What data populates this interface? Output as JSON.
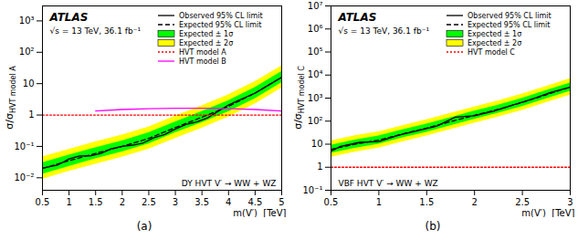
{
  "chart_data": [
    {
      "type": "line",
      "log": "y",
      "panel_label": "(a)",
      "xlabel": "m(V′)  [TeV]",
      "ylabel": "σ/σ",
      "ylabel_subscript": "HVT model A",
      "annotations": [
        "ATLAS",
        "√s = 13 TeV, 36.1 fb⁻¹",
        "DY HVT V′ → WW + WZ"
      ],
      "legend": "top-right",
      "xlim": [
        0.5,
        5
      ],
      "xticks": [
        0.5,
        1,
        1.5,
        2,
        2.5,
        3,
        3.5,
        4,
        4.5,
        5
      ],
      "ylim": [
        0.004,
        3000
      ],
      "yticks": [
        {
          "value": 0.01,
          "label": "10⁻²"
        },
        {
          "value": 0.1,
          "label": "10⁻¹"
        },
        1,
        10,
        {
          "value": 100,
          "label": "10²"
        },
        {
          "value": 1000,
          "label": "10³"
        }
      ],
      "series": [
        {
          "name": "Observed 95% CL limit",
          "color": "#000000",
          "line_style": "solid",
          "x": [
            0.5,
            0.6,
            0.8,
            1.0,
            1.2,
            1.4,
            1.6,
            1.8,
            2.0,
            2.2,
            2.4,
            2.6,
            2.8,
            3.0,
            3.2,
            3.4,
            3.6,
            3.8,
            4.0,
            4.5,
            5
          ],
          "values": [
            0.02,
            0.022,
            0.026,
            0.04,
            0.05,
            0.05,
            0.06,
            0.085,
            0.1,
            0.11,
            0.13,
            0.19,
            0.24,
            0.36,
            0.5,
            0.6,
            0.8,
            1.3,
            2.1,
            5,
            16
          ]
        },
        {
          "name": "Expected 95% CL limit",
          "color": "#000000",
          "line_style": "dashed",
          "x": [
            0.5,
            1,
            1.5,
            2,
            2.5,
            3,
            3.5,
            4,
            4.5,
            5
          ],
          "values": [
            0.02,
            0.035,
            0.06,
            0.1,
            0.18,
            0.4,
            0.85,
            1.9,
            5,
            16
          ]
        },
        {
          "name": "Expected ± 1σ",
          "type": "band",
          "color": "#00ff00",
          "x": [
            0.5,
            1,
            1.5,
            2,
            2.5,
            3,
            3.5,
            4,
            4.5,
            5
          ],
          "low": [
            0.013,
            0.023,
            0.04,
            0.067,
            0.12,
            0.27,
            0.57,
            1.27,
            3.3,
            10.7
          ],
          "high": [
            0.03,
            0.053,
            0.09,
            0.15,
            0.27,
            0.6,
            1.28,
            2.85,
            7.5,
            24
          ]
        },
        {
          "name": "Expected ± 2σ",
          "type": "band",
          "color": "#ffff00",
          "x": [
            0.5,
            1,
            1.5,
            2,
            2.5,
            3,
            3.5,
            4,
            4.5,
            5
          ],
          "low": [
            0.009,
            0.016,
            0.027,
            0.045,
            0.081,
            0.18,
            0.38,
            0.86,
            2.25,
            7.2
          ],
          "high": [
            0.046,
            0.08,
            0.14,
            0.23,
            0.41,
            0.92,
            1.96,
            4.4,
            11.5,
            37
          ]
        },
        {
          "name": "HVT model A",
          "color": "#ff0000",
          "line_style": "dotted",
          "x": [
            0.5,
            5
          ],
          "values": [
            1,
            1
          ]
        },
        {
          "name": "HVT model B",
          "color": "#ff00ff",
          "line_style": "solid",
          "x": [
            1.5,
            2,
            2.5,
            3,
            3.5,
            4,
            4.5,
            5
          ],
          "values": [
            1.35,
            1.5,
            1.6,
            1.65,
            1.65,
            1.6,
            1.5,
            1.35
          ]
        }
      ]
    },
    {
      "type": "line",
      "log": "y",
      "panel_label": "(b)",
      "xlabel": "m(V′)  [TeV]",
      "ylabel": "σ/σ",
      "ylabel_subscript": "HVT model C",
      "annotations": [
        "ATLAS",
        "√s = 13 TeV, 36.1 fb⁻¹",
        "VBF HVT V′ → WW + WZ"
      ],
      "legend": "top-right",
      "xlim": [
        0.5,
        3
      ],
      "xticks": [
        0.5,
        1,
        1.5,
        2,
        2.5,
        3
      ],
      "ylim": [
        0.1,
        10000000
      ],
      "yticks": [
        {
          "value": 0.1,
          "label": "10⁻¹"
        },
        1,
        10,
        {
          "value": 100,
          "label": "10²"
        },
        {
          "value": 1000,
          "label": "10³"
        },
        {
          "value": 10000,
          "label": "10⁴"
        },
        {
          "value": 100000,
          "label": "10⁵"
        },
        {
          "value": 1000000,
          "label": "10⁶"
        },
        {
          "value": 10000000,
          "label": "10⁷"
        }
      ],
      "series": [
        {
          "name": "Observed 95% CL limit",
          "color": "#000000",
          "line_style": "solid",
          "x": [
            0.5,
            0.6,
            0.8,
            1.0,
            1.2,
            1.4,
            1.6,
            1.8,
            2.0,
            2.2,
            2.4,
            2.6,
            2.8,
            3.0
          ],
          "values": [
            5,
            8,
            12,
            13,
            24,
            38,
            60,
            150,
            170,
            270,
            500,
            900,
            1800,
            3000
          ]
        },
        {
          "name": "Expected 95% CL limit",
          "color": "#000000",
          "line_style": "dashed",
          "x": [
            0.5,
            0.75,
            1,
            1.25,
            1.5,
            1.75,
            2,
            2.25,
            2.5,
            2.75,
            3
          ],
          "values": [
            6,
            10,
            15,
            28,
            50,
            95,
            180,
            330,
            650,
            1400,
            3000
          ]
        },
        {
          "name": "Expected ± 1σ",
          "type": "band",
          "color": "#00ff00",
          "x": [
            0.5,
            0.75,
            1,
            1.25,
            1.5,
            1.75,
            2,
            2.25,
            2.5,
            2.75,
            3
          ],
          "low": [
            4,
            6.7,
            10,
            19,
            33,
            64,
            120,
            220,
            435,
            940,
            2000
          ],
          "high": [
            9,
            15,
            22.5,
            42,
            75,
            142,
            270,
            495,
            975,
            2100,
            4500
          ]
        },
        {
          "name": "Expected ± 2σ",
          "type": "band",
          "color": "#ffff00",
          "x": [
            0.5,
            0.75,
            1,
            1.25,
            1.5,
            1.75,
            2,
            2.25,
            2.5,
            2.75,
            3
          ],
          "low": [
            2.7,
            4.5,
            6.8,
            12.6,
            22.5,
            43,
            81,
            150,
            290,
            630,
            1350
          ],
          "high": [
            13.8,
            23,
            34.5,
            64,
            115,
            218,
            414,
            760,
            1500,
            3220,
            6900
          ]
        },
        {
          "name": "HVT model C",
          "color": "#ff0000",
          "line_style": "dotted",
          "x": [
            0.5,
            3
          ],
          "values": [
            1,
            1
          ]
        }
      ]
    }
  ]
}
